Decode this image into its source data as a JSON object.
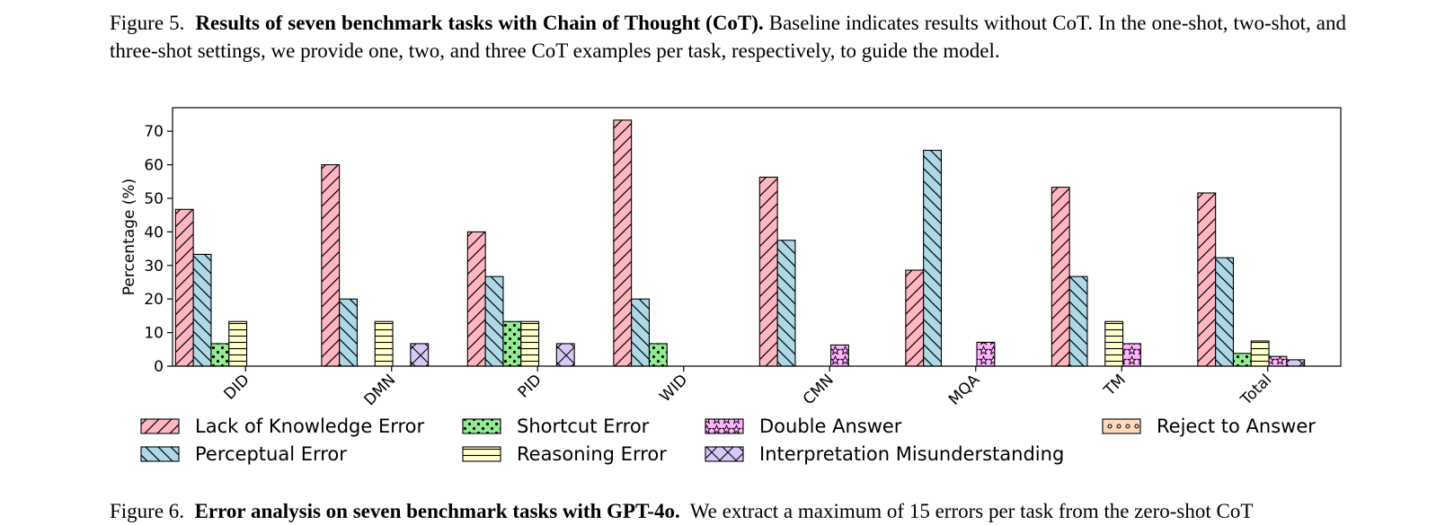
{
  "captions": {
    "fig5_label": "Figure 5.",
    "fig5_title": "Results of seven benchmark tasks with Chain of Thought (CoT).",
    "fig5_text": "Baseline indicates results without CoT. In the one-shot, two-shot, and three-shot settings, we provide one, two, and three CoT examples per task, respectively, to guide the model.",
    "fig6_label": "Figure 6.",
    "fig6_title": "Error analysis on seven benchmark tasks with GPT-4o.",
    "fig6_text": "We extract a maximum of 15 errors per task from the zero-shot CoT"
  },
  "chart_data": {
    "type": "bar",
    "ylabel": "Percentage (%)",
    "ylim": [
      0,
      77
    ],
    "yticks": [
      0,
      10,
      20,
      30,
      40,
      50,
      60,
      70
    ],
    "categories": [
      "DID",
      "DMN",
      "PID",
      "WID",
      "CMN",
      "MQA",
      "TM",
      "Total"
    ],
    "legend_placement": "bottom",
    "series": [
      {
        "name": "Lack of Knowledge Error",
        "color": "#ffb6c1",
        "pattern": "diagonal",
        "values": [
          46.7,
          60.0,
          40.0,
          73.3,
          56.3,
          28.6,
          53.3,
          51.6
        ]
      },
      {
        "name": "Perceptual Error",
        "color": "#add8e6",
        "pattern": "backslash",
        "values": [
          33.3,
          20.0,
          26.7,
          20.0,
          37.5,
          64.3,
          26.7,
          32.3
        ]
      },
      {
        "name": "Shortcut Error",
        "color": "#90ee90",
        "pattern": "dots",
        "values": [
          6.7,
          0,
          13.3,
          6.7,
          0,
          0,
          0,
          3.8
        ]
      },
      {
        "name": "Reasoning Error",
        "color": "#ffffcc",
        "pattern": "horizontal",
        "values": [
          13.3,
          13.3,
          13.3,
          0,
          0,
          0,
          13.3,
          7.5
        ]
      },
      {
        "name": "Double Answer",
        "color": "#ffb3ff",
        "pattern": "stars",
        "values": [
          0,
          0,
          0,
          0,
          6.3,
          7.1,
          6.7,
          2.9
        ]
      },
      {
        "name": "Interpretation Misunderstanding",
        "color": "#d8c8f5",
        "pattern": "cross",
        "values": [
          0,
          6.7,
          6.7,
          0,
          0,
          0,
          0,
          1.9
        ]
      },
      {
        "name": "Reject to Answer",
        "color": "#ffdab9",
        "pattern": "circles",
        "values": [
          0,
          0,
          0,
          0,
          0,
          0,
          0,
          0
        ]
      }
    ]
  }
}
